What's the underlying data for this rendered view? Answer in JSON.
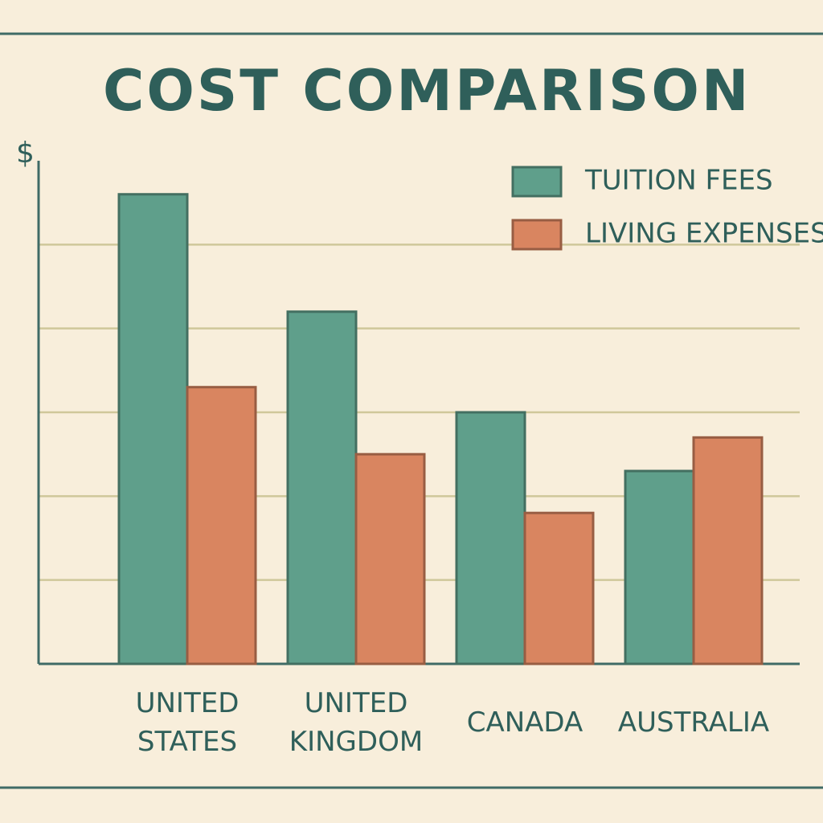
{
  "chart_data": {
    "type": "bar",
    "title": "COST COMPARISON",
    "y_label": "$",
    "categories": [
      "UNITED STATES",
      "UNITED KINGDOM",
      "CANADA",
      "AUSTRALIA"
    ],
    "series": [
      {
        "name": "TUITION FEES",
        "color": "#5f9f8b",
        "values": [
          5.6,
          4.2,
          3.0,
          2.3
        ]
      },
      {
        "name": "LIVING EXPENSES",
        "color": "#d98560",
        "values": [
          3.3,
          2.5,
          1.8,
          2.7
        ]
      }
    ],
    "ylim": [
      0,
      6
    ],
    "yticks": [
      1,
      2,
      3,
      4,
      5
    ],
    "grid": true,
    "legend": "top-right"
  }
}
